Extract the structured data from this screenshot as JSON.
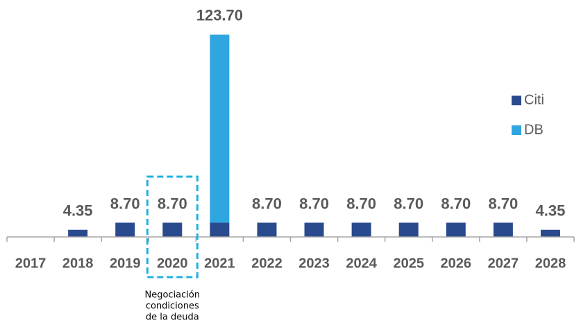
{
  "chart_data": {
    "type": "bar",
    "stacked": true,
    "categories": [
      "2017",
      "2018",
      "2019",
      "2020",
      "2021",
      "2022",
      "2023",
      "2024",
      "2025",
      "2026",
      "2027",
      "2028"
    ],
    "series": [
      {
        "name": "Citi",
        "color": "#2a4a8e",
        "values": [
          null,
          4.35,
          8.7,
          8.7,
          8.7,
          8.7,
          8.7,
          8.7,
          8.7,
          8.7,
          8.7,
          4.35
        ]
      },
      {
        "name": "DB",
        "color": "#2fa6e0",
        "values": [
          null,
          null,
          null,
          null,
          115,
          null,
          null,
          null,
          null,
          null,
          null,
          null
        ]
      }
    ],
    "totals": [
      null,
      4.35,
      8.7,
      8.7,
      123.7,
      8.7,
      8.7,
      8.7,
      8.7,
      8.7,
      8.7,
      4.35
    ],
    "total_labels": [
      null,
      "4.35",
      "8.70",
      "8.70",
      "123.70",
      "8.70",
      "8.70",
      "8.70",
      "8.70",
      "8.70",
      "8.70",
      "4.35"
    ],
    "ylim": [
      0,
      130
    ],
    "annotation": {
      "category": "2020",
      "lines": [
        "Negociación",
        "condiciones",
        "de la deuda"
      ]
    }
  }
}
